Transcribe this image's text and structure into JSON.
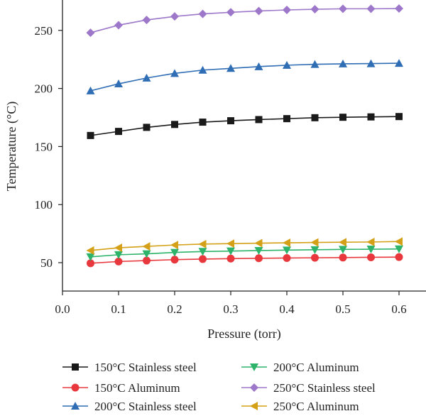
{
  "chart_data": {
    "type": "line",
    "title": "",
    "xlabel": "Pressure (torr)",
    "ylabel": "Temperature (°C)",
    "xlim": [
      0.0,
      0.65
    ],
    "ylim": [
      0,
      270
    ],
    "xticks": [
      "0.0",
      "0.1",
      "0.2",
      "0.3",
      "0.4",
      "0.5",
      "0.6"
    ],
    "yticks": [
      "50",
      "100",
      "150",
      "200",
      "250"
    ],
    "grid": false,
    "legend_position": "bottom",
    "x": [
      0.05,
      0.1,
      0.15,
      0.2,
      0.25,
      0.3,
      0.35,
      0.4,
      0.45,
      0.5,
      0.55,
      0.6
    ],
    "series": [
      {
        "name": "150°C Stainless steel",
        "color": "#1a1a1a",
        "marker": "square",
        "values": [
          159.5,
          163,
          166.5,
          169,
          171,
          172.2,
          173.2,
          174,
          174.8,
          175.2,
          175.5,
          175.8
        ]
      },
      {
        "name": "150°C Aluminum",
        "color": "#e8383d",
        "marker": "circle",
        "values": [
          49.5,
          51,
          51.8,
          52.6,
          53.1,
          53.5,
          53.8,
          54,
          54.2,
          54.4,
          54.6,
          54.8
        ]
      },
      {
        "name": "200°C Stainless steel",
        "color": "#2f6db5",
        "marker": "triangle-up",
        "values": [
          198,
          204,
          209,
          213,
          215.8,
          217.3,
          218.8,
          220,
          220.8,
          221.2,
          221.4,
          221.7
        ]
      },
      {
        "name": "200°C Aluminum",
        "color": "#2db36a",
        "marker": "triangle-down",
        "values": [
          55,
          56.8,
          57.6,
          58.8,
          59.6,
          60,
          60.4,
          60.8,
          61.1,
          61.4,
          61.6,
          61.8
        ]
      },
      {
        "name": "250°C Stainless steel",
        "color": "#9d77c9",
        "marker": "diamond",
        "values": [
          248,
          254.5,
          259,
          262,
          264.2,
          265.6,
          266.7,
          267.6,
          268.2,
          268.6,
          268.6,
          268.8
        ]
      },
      {
        "name": "250°C Aluminum",
        "color": "#d4a017",
        "marker": "triangle-left",
        "values": [
          60.5,
          62.8,
          64,
          65.2,
          66,
          66.4,
          66.8,
          67.1,
          67.4,
          67.6,
          67.8,
          68.2
        ]
      }
    ]
  }
}
